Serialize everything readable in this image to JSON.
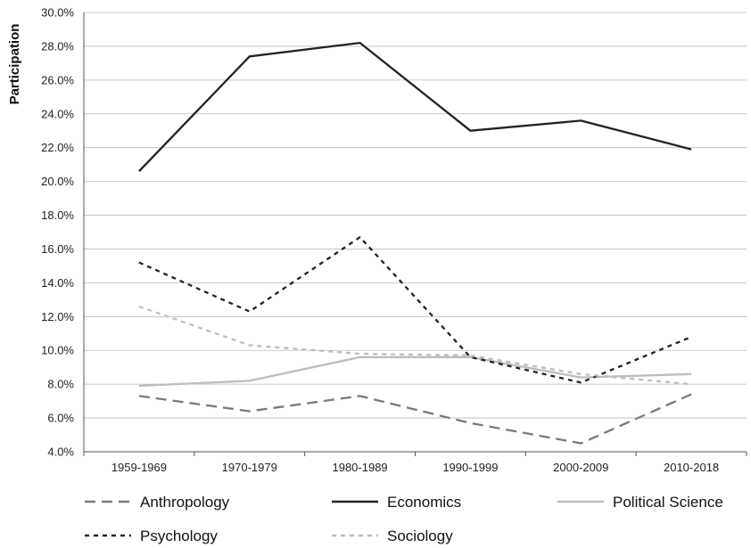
{
  "chart_data": {
    "type": "line",
    "title": "",
    "xlabel": "",
    "ylabel": "Participation",
    "categories": [
      "1959-1969",
      "1970-1979",
      "1980-1989",
      "1990-1999",
      "2000-2009",
      "2010-2018"
    ],
    "ylim": [
      4.0,
      30.0
    ],
    "yticks": [
      "4.0%",
      "6.0%",
      "8.0%",
      "10.0%",
      "12.0%",
      "14.0%",
      "16.0%",
      "18.0%",
      "20.0%",
      "22.0%",
      "24.0%",
      "26.0%",
      "28.0%",
      "30.0%"
    ],
    "grid": true,
    "legend_position": "bottom",
    "series": [
      {
        "name": "Anthropology",
        "values": [
          7.3,
          6.4,
          7.3,
          5.7,
          4.5,
          7.4
        ],
        "color": "#7a7a7a",
        "style": "long-dash"
      },
      {
        "name": "Economics",
        "values": [
          20.6,
          27.4,
          28.2,
          23.0,
          23.6,
          21.9
        ],
        "color": "#222222",
        "style": "solid"
      },
      {
        "name": "Political Science",
        "values": [
          7.9,
          8.2,
          9.6,
          9.6,
          8.4,
          8.6
        ],
        "color": "#bdbdbd",
        "style": "solid"
      },
      {
        "name": "Psychology",
        "values": [
          15.2,
          12.3,
          16.7,
          9.6,
          8.1,
          10.8
        ],
        "color": "#222222",
        "style": "short-dash"
      },
      {
        "name": "Sociology",
        "values": [
          12.6,
          10.3,
          9.8,
          9.7,
          8.6,
          8.0
        ],
        "color": "#bdbdbd",
        "style": "short-dash"
      }
    ]
  }
}
